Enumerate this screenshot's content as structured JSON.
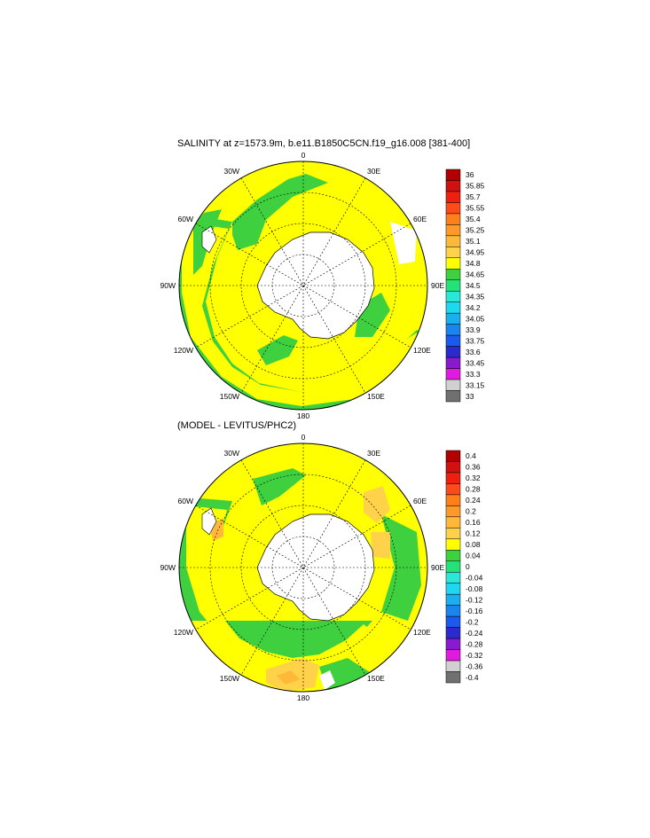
{
  "panels": [
    {
      "title": "SALINITY at z=1573.9m, b.e11.B1850C5CN.f19_g16.008 [381-400]",
      "lon_labels": [
        "0",
        "30E",
        "60E",
        "90E",
        "120E",
        "150E",
        "180",
        "150W",
        "120W",
        "90W",
        "60W",
        "30W"
      ],
      "colorbar": {
        "labels": [
          "36",
          "35.85",
          "35.7",
          "35.55",
          "35.4",
          "35.25",
          "35.1",
          "34.95",
          "34.8",
          "34.65",
          "34.5",
          "34.35",
          "34.2",
          "34.05",
          "33.9",
          "33.75",
          "33.6",
          "33.45",
          "33.3",
          "33.15",
          "33"
        ],
        "colors": [
          "#b20000",
          "#d21010",
          "#f02010",
          "#ff4a1a",
          "#ff7f1a",
          "#ff9a2a",
          "#ffb83a",
          "#ffd24a",
          "#ffff00",
          "#3ed03e",
          "#26e07a",
          "#2ae8d8",
          "#1ed8f0",
          "#1ab0ef",
          "#1a84ef",
          "#1a5aef",
          "#2a2acf",
          "#8a1acf",
          "#e01ae0",
          "#d0d0d0",
          "#707070"
        ]
      }
    },
    {
      "title": "(MODEL - LEVITUS/PHC2)",
      "lon_labels": [
        "0",
        "30E",
        "60E",
        "90E",
        "120E",
        "150E",
        "180",
        "150W",
        "120W",
        "90W",
        "60W",
        "30W"
      ],
      "colorbar": {
        "labels": [
          "0.4",
          "0.36",
          "0.32",
          "0.28",
          "0.24",
          "0.2",
          "0.16",
          "0.12",
          "0.08",
          "0.04",
          "0",
          "-0.04",
          "-0.08",
          "-0.12",
          "-0.16",
          "-0.2",
          "-0.24",
          "-0.28",
          "-0.32",
          "-0.36",
          "-0.4"
        ],
        "colors": [
          "#b20000",
          "#d21010",
          "#f02010",
          "#ff4a1a",
          "#ff7f1a",
          "#ff9a2a",
          "#ffb83a",
          "#ffd24a",
          "#ffff00",
          "#3ed03e",
          "#26e07a",
          "#2ae8d8",
          "#1ed8f0",
          "#1ab0ef",
          "#1a84ef",
          "#1a5aef",
          "#2a2acf",
          "#8a1acf",
          "#e01ae0",
          "#d0d0d0",
          "#707070"
        ]
      }
    }
  ],
  "colors": {
    "antarctica": "#ffffff",
    "ocean_yellow": "#ffff00",
    "ocean_green": "#3ed03e",
    "ocean_orange": "#ffd24a",
    "gridline": "#000000"
  }
}
